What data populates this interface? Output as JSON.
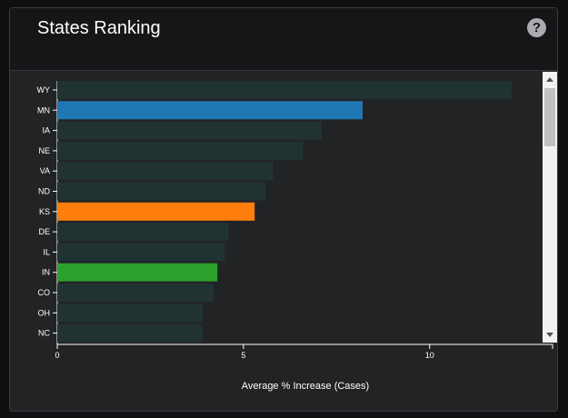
{
  "panel": {
    "title": "States Ranking",
    "help_icon": "question-circle-icon"
  },
  "colors": {
    "default_bar": "#213232",
    "highlight_blue": "#1f77b4",
    "highlight_orange": "#ff7f0e",
    "highlight_green": "#2ca02c"
  },
  "chart_data": {
    "type": "bar",
    "orientation": "horizontal",
    "categories": [
      "WY",
      "MN",
      "IA",
      "NE",
      "VA",
      "ND",
      "KS",
      "DE",
      "IL",
      "IN",
      "CO",
      "OH",
      "NC"
    ],
    "values": [
      12.2,
      8.2,
      7.1,
      6.6,
      5.8,
      5.6,
      5.3,
      4.6,
      4.5,
      4.3,
      4.2,
      3.9,
      3.9
    ],
    "highlights": {
      "MN": "highlight_blue",
      "KS": "highlight_orange",
      "IN": "highlight_green"
    },
    "xlabel": "Average % Increase (Cases)",
    "xticks": [
      0,
      5,
      10
    ],
    "xlim": [
      0,
      13.3
    ]
  }
}
